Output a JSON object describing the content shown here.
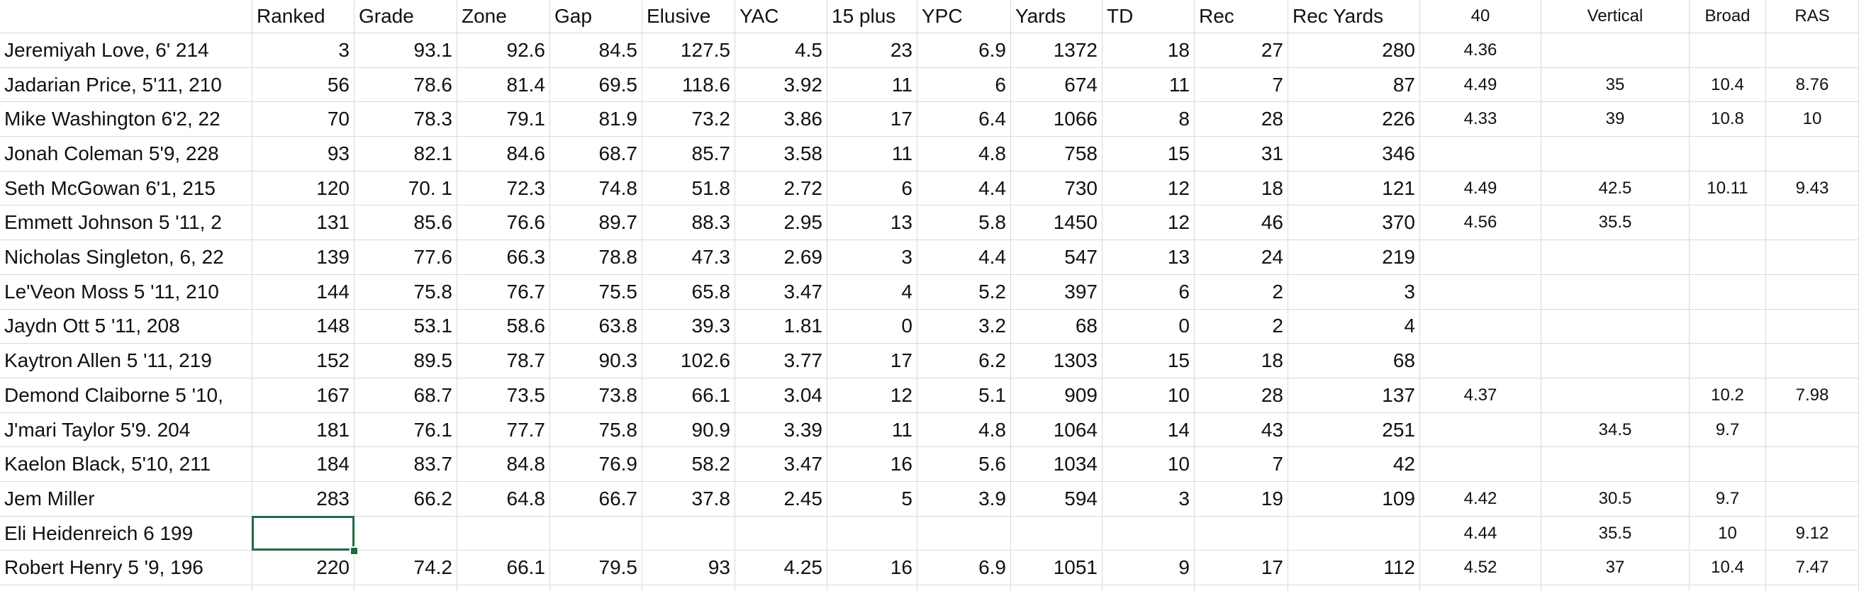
{
  "table": {
    "columns": [
      null,
      "Ranked",
      "Grade",
      "Zone",
      "Gap",
      "Elusive",
      "YAC",
      "15 plus",
      "YPC",
      "Yards",
      "TD",
      "Rec",
      "Rec Yards",
      "40",
      "Vertical",
      "Broad",
      "RAS"
    ],
    "rows": [
      [
        "Jeremiyah Love, 6' 214",
        3,
        93.1,
        92.6,
        84.5,
        127.5,
        4.5,
        23,
        6.9,
        1372,
        18,
        27,
        280,
        4.36,
        null,
        null,
        null
      ],
      [
        "Jadarian Price, 5'11, 210",
        56,
        78.6,
        81.4,
        69.5,
        118.6,
        3.92,
        11,
        6,
        674,
        11,
        7,
        87,
        4.49,
        35,
        10.4,
        8.76
      ],
      [
        "Mike Washington 6'2, 22",
        70,
        78.3,
        79.1,
        81.9,
        73.2,
        3.86,
        17,
        6.4,
        1066,
        8,
        28,
        226,
        4.33,
        39,
        10.8,
        10
      ],
      [
        "Jonah Coleman 5'9, 228",
        93,
        82.1,
        84.6,
        68.7,
        85.7,
        3.58,
        11,
        4.8,
        758,
        15,
        31,
        346,
        null,
        null,
        null,
        null
      ],
      [
        "Seth McGowan 6'1, 215",
        120,
        "70. 1",
        72.3,
        74.8,
        51.8,
        2.72,
        6,
        4.4,
        730,
        12,
        18,
        121,
        4.49,
        42.5,
        10.11,
        9.43
      ],
      [
        "Emmett Johnson 5 '11, 2",
        131,
        85.6,
        76.6,
        89.7,
        88.3,
        2.95,
        13,
        5.8,
        1450,
        12,
        46,
        370,
        4.56,
        35.5,
        null,
        null
      ],
      [
        "Nicholas Singleton, 6, 22",
        139,
        77.6,
        66.3,
        78.8,
        47.3,
        2.69,
        3,
        4.4,
        547,
        13,
        24,
        219,
        null,
        null,
        null,
        null
      ],
      [
        "Le'Veon Moss 5 '11, 210",
        144,
        75.8,
        76.7,
        75.5,
        65.8,
        3.47,
        4,
        5.2,
        397,
        6,
        2,
        3,
        null,
        null,
        null,
        null
      ],
      [
        "Jaydn Ott 5 '11, 208",
        148,
        53.1,
        58.6,
        63.8,
        39.3,
        1.81,
        0,
        3.2,
        68,
        0,
        2,
        4,
        null,
        null,
        null,
        null
      ],
      [
        "Kaytron Allen 5 '11, 219",
        152,
        89.5,
        78.7,
        90.3,
        102.6,
        3.77,
        17,
        6.2,
        1303,
        15,
        18,
        68,
        null,
        null,
        null,
        null
      ],
      [
        "Demond Claiborne 5 '10,",
        167,
        68.7,
        73.5,
        73.8,
        66.1,
        3.04,
        12,
        5.1,
        909,
        10,
        28,
        137,
        4.37,
        null,
        10.2,
        7.98
      ],
      [
        "J'mari Taylor 5'9. 204",
        181,
        76.1,
        77.7,
        75.8,
        90.9,
        3.39,
        11,
        4.8,
        1064,
        14,
        43,
        251,
        null,
        34.5,
        9.7,
        null
      ],
      [
        "Kaelon Black, 5'10, 211",
        184,
        83.7,
        84.8,
        76.9,
        58.2,
        3.47,
        16,
        5.6,
        1034,
        10,
        7,
        42,
        null,
        null,
        null,
        null
      ],
      [
        "Jem Miller",
        283,
        66.2,
        64.8,
        66.7,
        37.8,
        2.45,
        5,
        3.9,
        594,
        3,
        19,
        109,
        4.42,
        30.5,
        9.7,
        null
      ],
      [
        "Eli Heidenreich 6 199",
        null,
        null,
        null,
        null,
        null,
        null,
        null,
        null,
        null,
        null,
        null,
        null,
        4.44,
        35.5,
        10,
        9.12
      ],
      [
        "Robert Henry 5 '9, 196",
        220,
        74.2,
        66.1,
        79.5,
        93,
        4.25,
        16,
        6.9,
        1051,
        9,
        17,
        112,
        4.52,
        37,
        10.4,
        7.47
      ]
    ]
  }
}
